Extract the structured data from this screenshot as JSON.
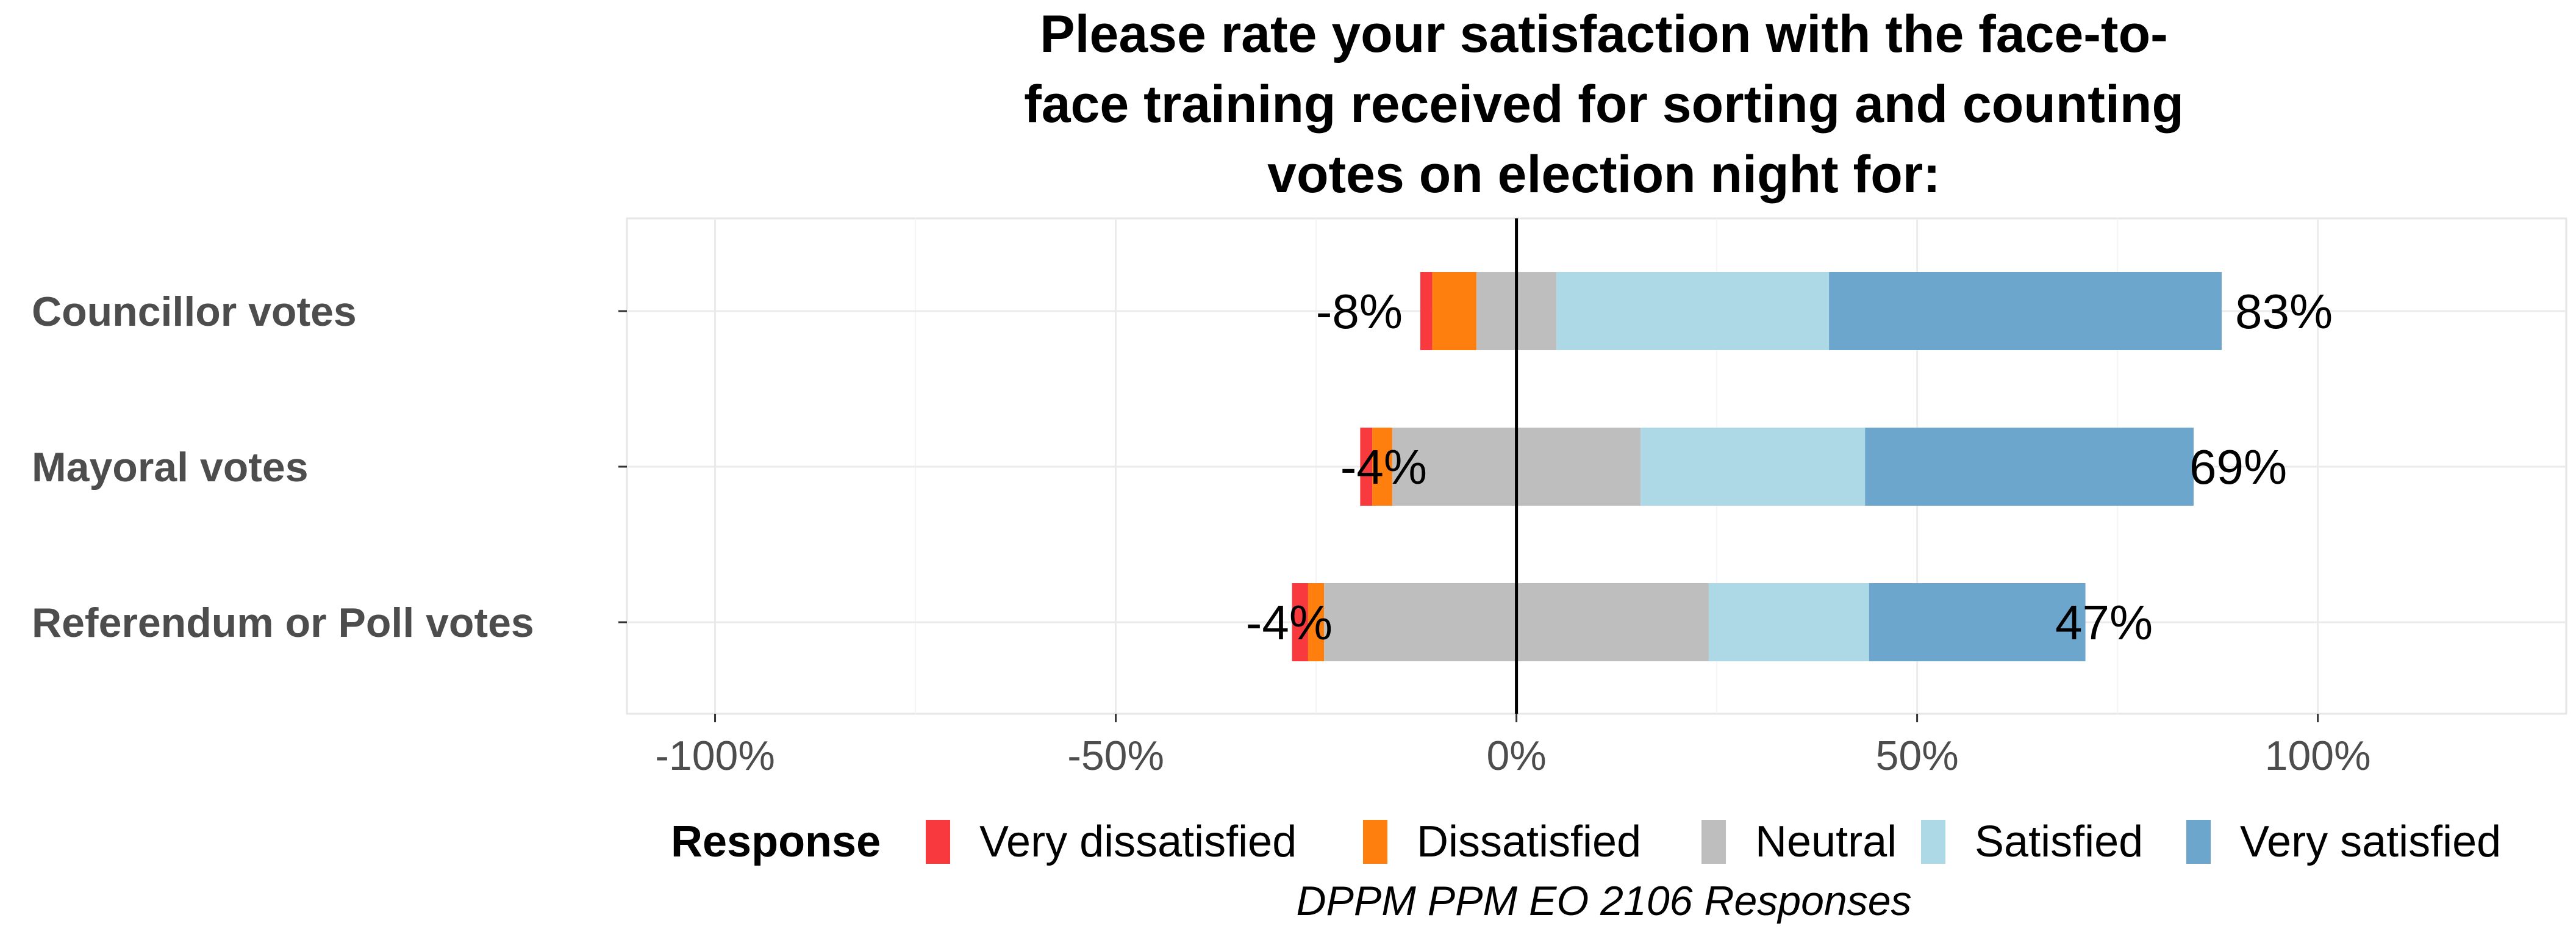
{
  "chart_data": {
    "type": "bar",
    "orientation": "horizontal-diverging-stacked",
    "title_lines": [
      "Please rate your satisfaction with the face-to-",
      "face training received for sorting and counting",
      "votes on election night for:"
    ],
    "categories": [
      "Councillor votes",
      "Mayoral votes",
      "Referendum or Poll votes"
    ],
    "series": [
      {
        "name": "Very dissatisfied",
        "color": "#f8393d",
        "values": [
          1.5,
          1.5,
          2
        ]
      },
      {
        "name": "Dissatisfied",
        "color": "#ff7f0e",
        "values": [
          5.5,
          2.5,
          2
        ]
      },
      {
        "name": "Neutral",
        "color": "#bebebe",
        "values": [
          10,
          31,
          48
        ]
      },
      {
        "name": "Satisfied",
        "color": "#add8e6",
        "values": [
          34,
          28,
          20
        ]
      },
      {
        "name": "Very satisfied",
        "color": "#6ca6cd",
        "values": [
          49,
          41,
          27
        ]
      }
    ],
    "neutral_split": "center",
    "left_labels": [
      "-8%",
      "-4%",
      "-4%"
    ],
    "right_labels": [
      "83%",
      "69%",
      "47%"
    ],
    "xlim": [
      -111,
      131
    ],
    "x_ticks": [
      -100,
      -50,
      0,
      50,
      100
    ],
    "x_tick_labels": [
      "-100%",
      "-50%",
      "0%",
      "50%",
      "100%"
    ],
    "legend_title": "Response",
    "legend_position": "bottom",
    "caption": "DPPM PPM EO 2106 Responses",
    "grid": true,
    "zero_line_color": "#000000"
  }
}
